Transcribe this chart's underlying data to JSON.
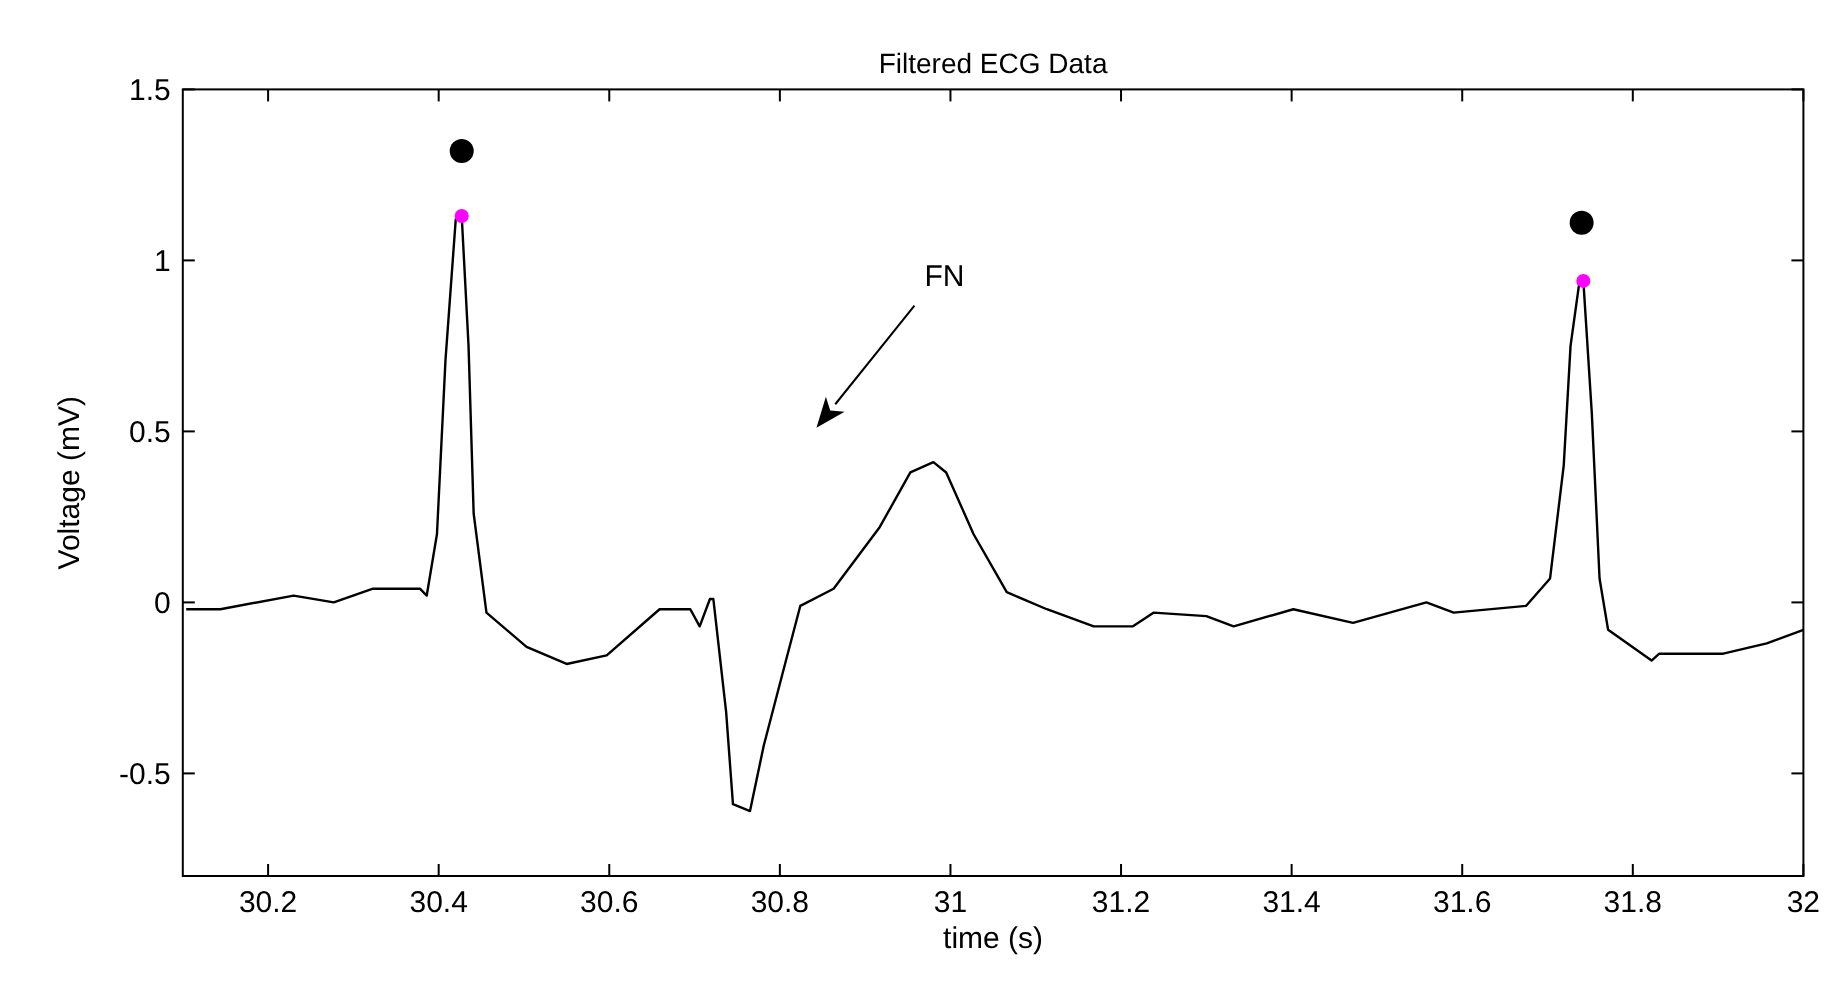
{
  "chart_data": {
    "type": "line",
    "title": "Filtered ECG Data",
    "xlabel": "time (s)",
    "ylabel": "Voltage (mV)",
    "xlim": [
      30.1,
      32
    ],
    "ylim": [
      -0.8,
      1.5
    ],
    "xticks": [
      30.2,
      30.4,
      30.6,
      30.8,
      31,
      31.2,
      31.4,
      31.6,
      31.8,
      32
    ],
    "yticks": [
      -0.5,
      0,
      0.5,
      1,
      1.5
    ],
    "grid": false,
    "line_style": "solid",
    "annotations": [
      "FN"
    ],
    "series": [
      {
        "color": "#000000",
        "marker": "none",
        "x": [
          30.104,
          30.144,
          30.23,
          30.277,
          30.323,
          30.378,
          30.386,
          30.398,
          30.408,
          30.42,
          30.427,
          30.435,
          30.441,
          30.456,
          30.503,
          30.55,
          30.597,
          30.659,
          30.695,
          30.706,
          30.718,
          30.722,
          30.737,
          30.745,
          30.765,
          30.781,
          30.804,
          30.824,
          30.863,
          30.917,
          30.953,
          30.98,
          30.995,
          31.027,
          31.066,
          31.113,
          31.168,
          31.214,
          31.238,
          31.3,
          31.332,
          31.402,
          31.472,
          31.558,
          31.59,
          31.675,
          31.703,
          31.719,
          31.727,
          31.737,
          31.742,
          31.752,
          31.761,
          31.771,
          31.822,
          31.831,
          31.906,
          31.957,
          32.0
        ],
        "values": [
          -0.02,
          -0.02,
          0.02,
          0,
          0.04,
          0.04,
          0.02,
          0.2,
          0.71,
          1.12,
          1.13,
          0.75,
          0.26,
          -0.03,
          -0.13,
          -0.18,
          -0.155,
          -0.02,
          -0.02,
          -0.07,
          0.01,
          0.01,
          -0.32,
          -0.59,
          -0.61,
          -0.42,
          -0.2,
          -0.01,
          0.04,
          0.22,
          0.38,
          0.41,
          0.38,
          0.2,
          0.03,
          -0.02,
          -0.07,
          -0.07,
          -0.03,
          -0.04,
          -0.07,
          -0.02,
          -0.06,
          0,
          -0.03,
          -0.01,
          0.07,
          0.4,
          0.75,
          0.93,
          0.94,
          0.55,
          0.07,
          -0.08,
          -0.17,
          -0.15,
          -0.15,
          -0.12,
          -0.08
        ]
      },
      {
        "type": "scatter",
        "color": "#ff00ff",
        "marker": "circle",
        "x": [
          30.427,
          31.742
        ],
        "values": [
          1.13,
          0.94
        ]
      },
      {
        "type": "scatter",
        "color": "#000000",
        "marker": "circle",
        "x": [
          30.427,
          31.74
        ],
        "values": [
          1.32,
          1.11
        ]
      }
    ]
  }
}
